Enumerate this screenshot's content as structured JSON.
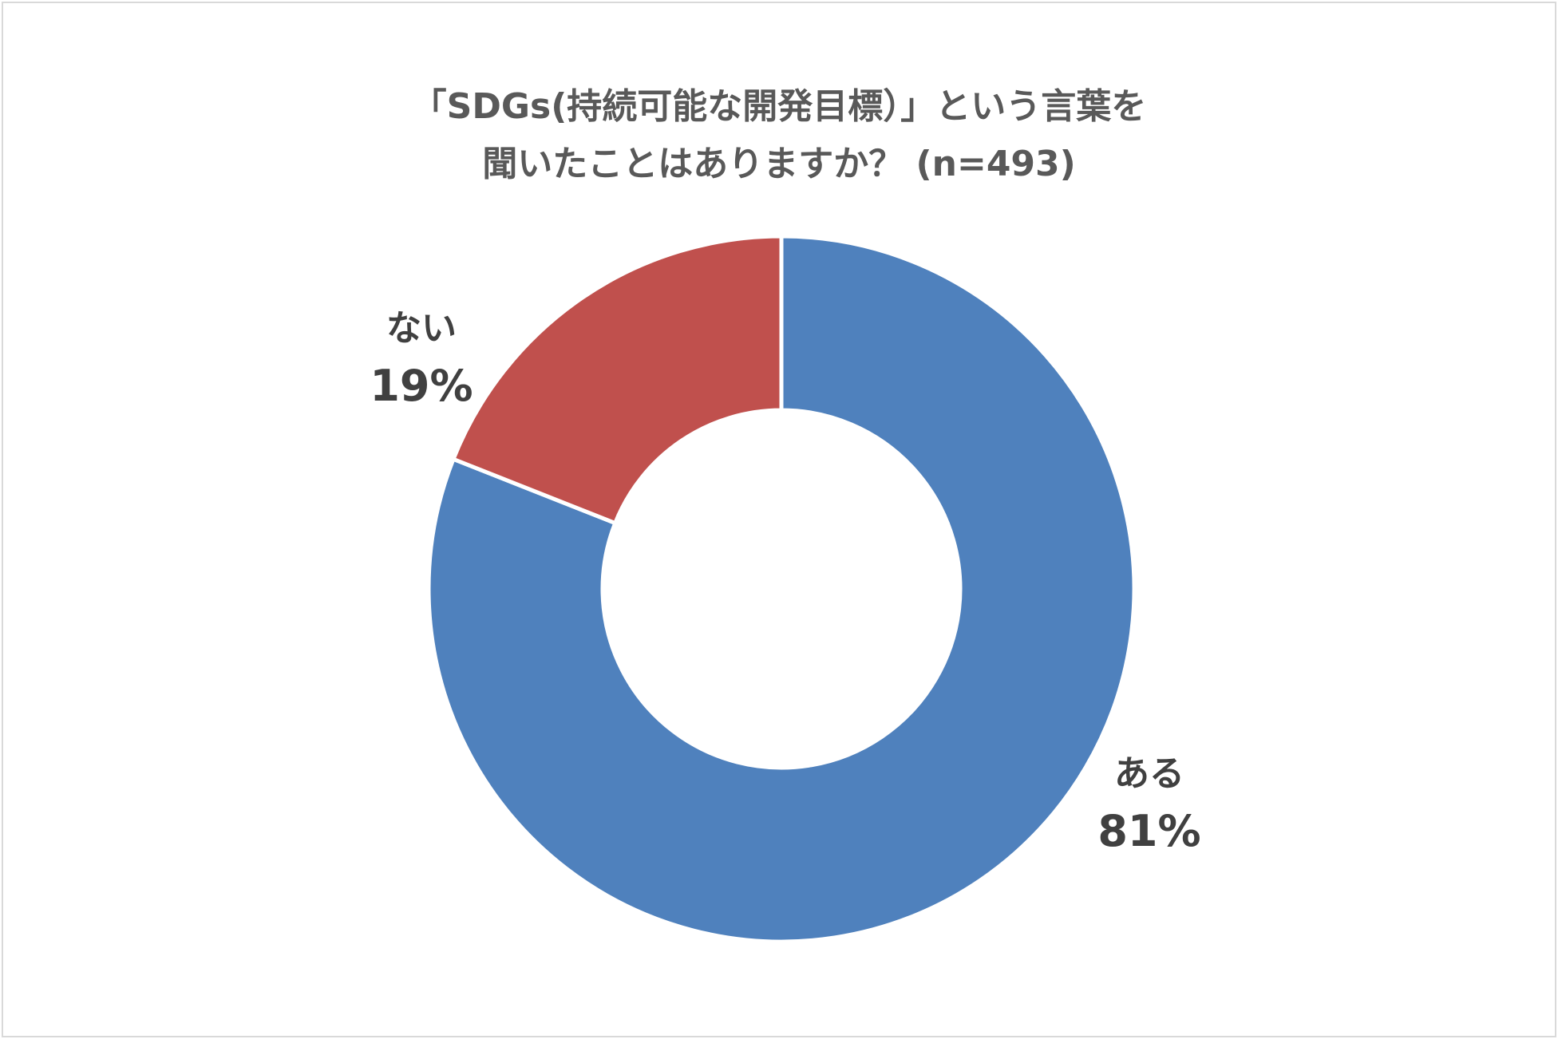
{
  "chart_data": {
    "type": "pie",
    "title_lines": [
      "「SDGs(持続可能な開発目標）」という言葉を",
      "聞いたことはありますか？ (n=493)"
    ],
    "hole": true,
    "slices": [
      {
        "label": "ある",
        "value": 81,
        "value_label": "81%",
        "color": "#4f81bd"
      },
      {
        "label": "ない",
        "value": 19,
        "value_label": "19%",
        "color": "#c0504d"
      }
    ],
    "start_angle": "12 o'clock",
    "direction": "clockwise"
  }
}
